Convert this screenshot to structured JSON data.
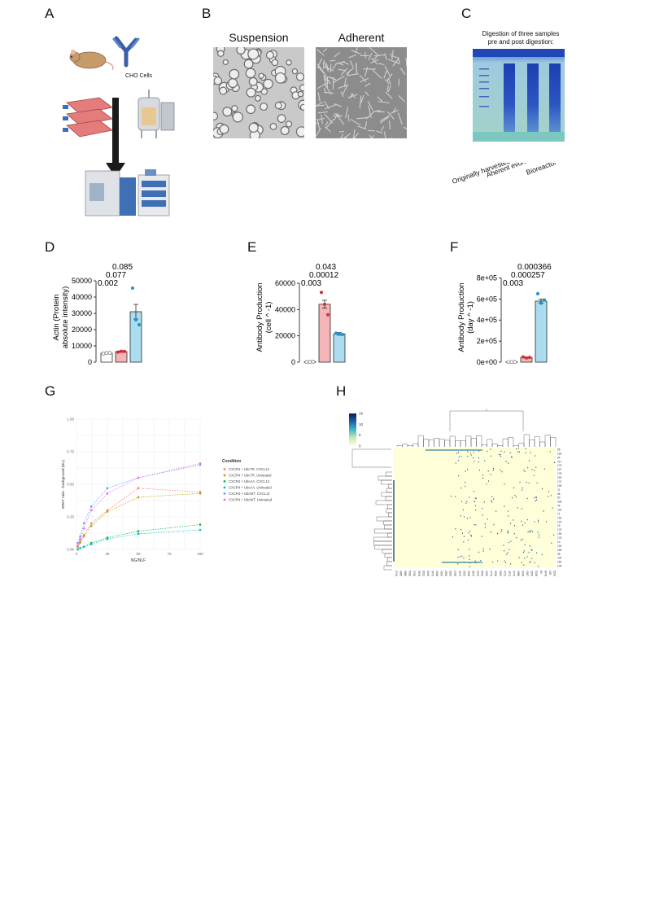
{
  "panels": {
    "A": {
      "letter": "A",
      "cells_label": "CHO Cells",
      "icons": [
        "mouse-icon",
        "antibody-icon",
        "flask-stack-icon",
        "bioreactor-icon",
        "down-arrow-icon",
        "mass-spectrometer-icon"
      ]
    },
    "B": {
      "letter": "B",
      "image_titles": [
        "Suspension",
        "Adherent"
      ]
    },
    "C": {
      "letter": "C",
      "title_line1": "Digestion of three samples",
      "title_line2": "pre and post digestion:",
      "lane_labels": [
        "Originally harvested",
        "Aherent evolved",
        "Bioreactor"
      ]
    },
    "D": {
      "letter": "D"
    },
    "E": {
      "letter": "E"
    },
    "F": {
      "letter": "F"
    },
    "G": {
      "letter": "G"
    },
    "H": {
      "letter": "H"
    }
  },
  "chart_data": [
    {
      "id": "D",
      "type": "bar",
      "ylabel_line1": "Actin (Protein",
      "ylabel_line2": "absolute intensity)",
      "yticks": [
        "0",
        "10000",
        "20000",
        "30000",
        "40000",
        "50000"
      ],
      "ylim": [
        0,
        55000
      ],
      "values": [
        5500,
        6500,
        31000
      ],
      "errors": [
        300,
        400,
        4500
      ],
      "points": [
        [
          5300,
          5600,
          5700
        ],
        [
          6200,
          6700,
          6600
        ],
        [
          45500,
          26000,
          23000
        ]
      ],
      "colors": [
        "#ffffff",
        "#f5b5b8",
        "#abdcef"
      ],
      "point_colors": [
        "#ffffff",
        "#d62e33",
        "#1c95c9"
      ],
      "pvalues": [
        "0.085",
        "0.077",
        "0.002"
      ]
    },
    {
      "id": "E",
      "type": "bar",
      "ylabel_line1": "Antibody Production",
      "ylabel_line2": "(cell ^ -1)",
      "yticks": [
        "0",
        "20000",
        "40000",
        "60000"
      ],
      "ylim": [
        0,
        68000
      ],
      "values": [
        200,
        44000,
        21500
      ],
      "errors": [
        100,
        3000,
        1000
      ],
      "points": [
        [
          100,
          200,
          300
        ],
        [
          53000,
          44000,
          36000
        ],
        [
          22000,
          21500,
          21000
        ]
      ],
      "colors": [
        "#ffffff",
        "#f5b5b8",
        "#abdcef"
      ],
      "point_colors": [
        "#ffffff",
        "#d62e33",
        "#1c95c9"
      ],
      "pvalues": [
        "0.043",
        "0.00012",
        "0.003"
      ]
    },
    {
      "id": "F",
      "type": "bar",
      "ylabel_line1": "Antibody Production",
      "ylabel_line2": "(day ^ -1)",
      "yticks": [
        "0e+00",
        "2e+05",
        "4e+05",
        "6e+05",
        "8e+05"
      ],
      "ylim": [
        0,
        850000
      ],
      "values": [
        2000,
        45000,
        580000
      ],
      "errors": [
        1000,
        5000,
        20000
      ],
      "points": [
        [
          1000,
          2000,
          3000
        ],
        [
          50000,
          40000,
          45000
        ],
        [
          650000,
          560000,
          590000
        ]
      ],
      "colors": [
        "#ffffff",
        "#f5b5b8",
        "#abdcef"
      ],
      "point_colors": [
        "#ffffff",
        "#d62e33",
        "#1c95c9"
      ],
      "pvalues": [
        "0.000366",
        "0.000257",
        "0.003"
      ]
    },
    {
      "id": "G",
      "type": "scatter",
      "xlabel": "NG/NLF",
      "ylabel": "BRET ratio - background (BU)",
      "xticks": [
        "0",
        "25",
        "50",
        "75",
        "100"
      ],
      "yticks": [
        "0.00",
        "0.25",
        "0.50",
        "0.75",
        "1.00"
      ],
      "xlim": [
        0,
        100
      ],
      "ylim": [
        0,
        1.0
      ],
      "legend_title": "Condition",
      "series": [
        {
          "name": "CXCR4 + Ubc7R. CXCL12",
          "color": "#f8766d",
          "x": [
            1,
            3,
            6,
            12,
            25,
            50,
            100
          ],
          "y": [
            0.02,
            0.05,
            0.1,
            0.2,
            0.3,
            0.47,
            0.44
          ]
        },
        {
          "name": "CXCR4 + Ubc7R. Untreated",
          "color": "#b79f00",
          "x": [
            1,
            3,
            6,
            12,
            25,
            50,
            100
          ],
          "y": [
            0.02,
            0.06,
            0.11,
            0.18,
            0.29,
            0.4,
            0.43
          ]
        },
        {
          "name": "CXCR4 + UbcAA. CXCL12",
          "color": "#00ba38",
          "x": [
            1,
            3,
            6,
            12,
            25,
            50,
            100
          ],
          "y": [
            0.0,
            0.01,
            0.02,
            0.05,
            0.09,
            0.14,
            0.19
          ]
        },
        {
          "name": "CXCR4 + UbcAA. Untreated",
          "color": "#00bfc4",
          "x": [
            1,
            3,
            6,
            12,
            25,
            50,
            100
          ],
          "y": [
            0.0,
            0.01,
            0.02,
            0.04,
            0.08,
            0.12,
            0.15
          ]
        },
        {
          "name": "CXCR4 + UbcWT. CXCL12",
          "color": "#619cff",
          "x": [
            1,
            3,
            6,
            12,
            25,
            50,
            100
          ],
          "y": [
            0.05,
            0.1,
            0.2,
            0.33,
            0.47,
            0.55,
            0.65
          ]
        },
        {
          "name": "CXCR4 + UbcWT. Untreated",
          "color": "#f564e3",
          "x": [
            1,
            3,
            6,
            12,
            25,
            50,
            100
          ],
          "y": [
            0.03,
            0.08,
            0.16,
            0.3,
            0.43,
            0.55,
            0.66
          ]
        }
      ]
    },
    {
      "id": "H",
      "type": "heatmap",
      "colorbar_ticks": [
        "15",
        "10",
        "5",
        "0"
      ],
      "colorbar_range": [
        0,
        15
      ],
      "colors": [
        "#feffd9",
        "#0c1e4f"
      ],
      "row_labels": [
        "95",
        "162",
        "94",
        "217",
        "173",
        "227",
        "178",
        "200",
        "172",
        "238",
        "21",
        "86",
        "60",
        "228",
        "44",
        "118",
        "71",
        "152",
        "179",
        "15",
        "175",
        "159",
        "176",
        "10",
        "131",
        "169",
        "35",
        "100",
        "160",
        "109"
      ],
      "col_labels": [
        "2744",
        "4065",
        "5680",
        "5019",
        "2730",
        "5678",
        "6021",
        "3419",
        "5479",
        "4016",
        "4594",
        "2900",
        "2619",
        "1780",
        "4575",
        "5520",
        "4516",
        "3675",
        "5570",
        "6531",
        "4013",
        "4770",
        "1526",
        "2920",
        "4721",
        "4571",
        "4774",
        "4068",
        "2433",
        "4067",
        "5250",
        "5218",
        "60",
        "6478",
        "100",
        "3214"
      ]
    }
  ]
}
